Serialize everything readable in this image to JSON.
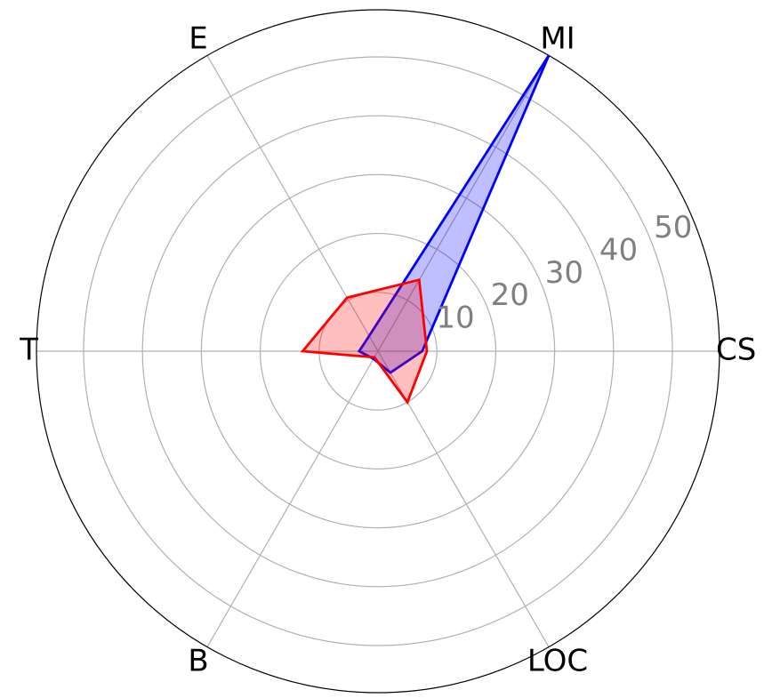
{
  "chart_data": {
    "type": "radar",
    "axes": [
      "CS",
      "MI",
      "E",
      "T",
      "B",
      "LOC"
    ],
    "r_ticks": [
      10,
      20,
      30,
      40,
      50
    ],
    "r_tick_labels": [
      "10",
      "20",
      "30",
      "40",
      "50"
    ],
    "r_max": 58,
    "grid": true,
    "series": [
      {
        "values": [
          7.5,
          58,
          3.0,
          3.2,
          1.5,
          4.2
        ],
        "line_color": "#0000ff",
        "fill_color": "#0000ff"
      },
      {
        "values": [
          8.3,
          14.0,
          10.5,
          12.8,
          1.2,
          10.0
        ],
        "line_color": "#ff0000",
        "fill_color": "#ff0000"
      }
    ]
  }
}
